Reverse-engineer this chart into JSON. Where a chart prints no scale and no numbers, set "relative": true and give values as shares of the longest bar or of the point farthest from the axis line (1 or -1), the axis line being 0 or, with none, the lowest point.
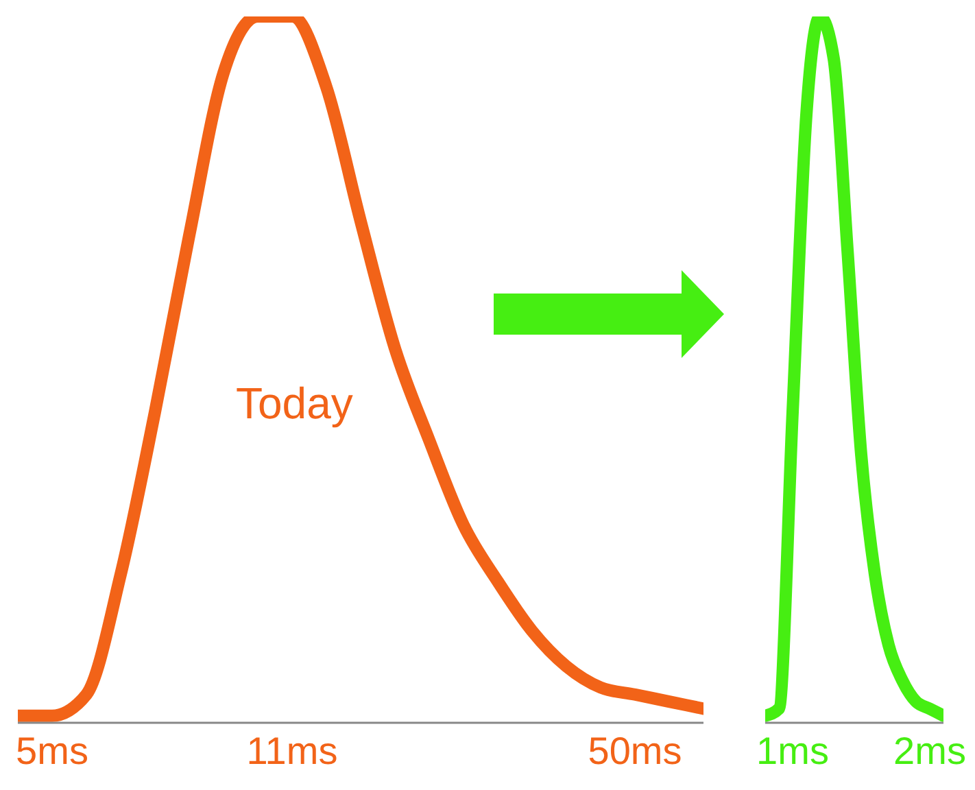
{
  "chart_data": [
    {
      "type": "line",
      "relative": true,
      "categories": [
        null,
        "5ms",
        null,
        null,
        null,
        null,
        null,
        null,
        "11ms",
        null,
        null,
        null,
        null,
        null,
        null,
        null,
        null,
        null,
        "50ms",
        null,
        null
      ],
      "series": [
        {
          "color": "#f26318",
          "values": [
            0.01,
            0.01,
            0.04,
            0.21,
            0.44,
            0.69,
            0.92,
            1.0,
            1.0,
            0.9,
            0.71,
            0.53,
            0.4,
            0.28,
            0.2,
            0.13,
            0.08,
            0.05,
            0.04,
            0.03,
            0.02
          ]
        }
      ],
      "annotations": [
        "Today"
      ],
      "marker": "none",
      "line_style": "solid"
    },
    {
      "type": "line",
      "relative": true,
      "categories": [
        null,
        null,
        "1ms",
        null,
        null,
        null,
        null,
        null,
        null,
        null,
        null,
        null,
        "2ms",
        null
      ],
      "series": [
        {
          "color": "#46ee12",
          "values": [
            0.01,
            0.02,
            0.44,
            0.86,
            1.0,
            0.94,
            0.67,
            0.38,
            0.21,
            0.11,
            0.06,
            0.03,
            0.02,
            0.01
          ]
        }
      ],
      "marker": "none",
      "line_style": "solid"
    }
  ]
}
